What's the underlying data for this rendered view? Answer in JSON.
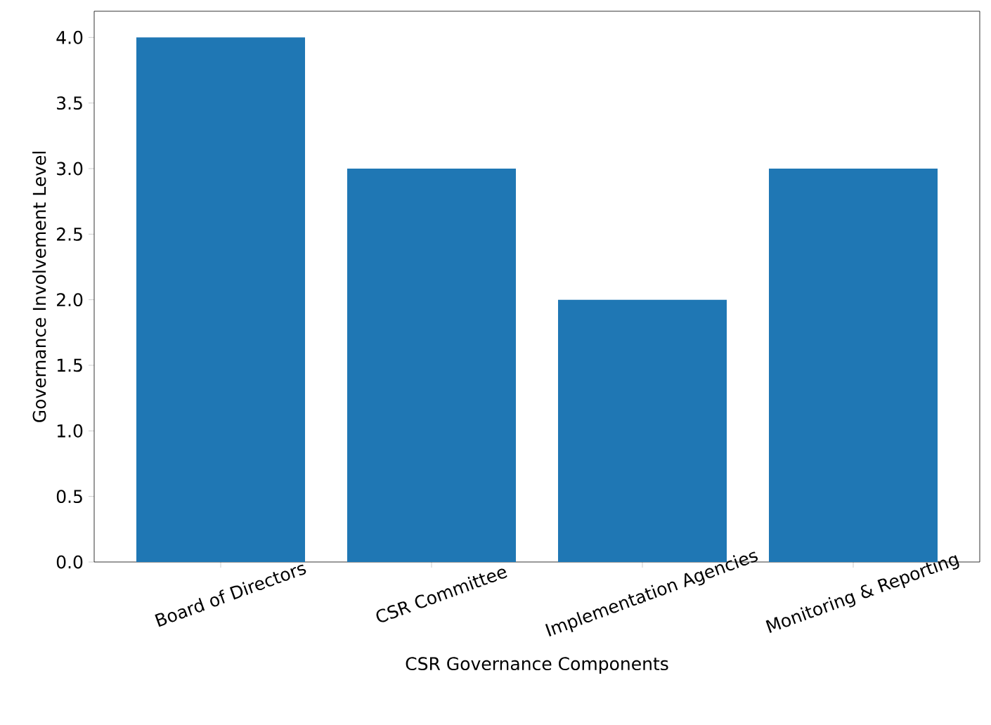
{
  "chart_data": {
    "type": "bar",
    "xlabel": "CSR Governance Components",
    "ylabel": "Governance Involvement Level",
    "categories": [
      "Board of Directors",
      "CSR Committee",
      "Implementation Agencies",
      "Monitoring & Reporting"
    ],
    "values": [
      4,
      3,
      2,
      3
    ],
    "color": "#1f77b4",
    "ylim": [
      0,
      4.2
    ],
    "yticks": [
      {
        "value": 0,
        "label": "0.0"
      },
      {
        "value": 0.5,
        "label": "0.5"
      },
      {
        "value": 1,
        "label": "1.0"
      },
      {
        "value": 1.5,
        "label": "1.5"
      },
      {
        "value": 2,
        "label": "2.0"
      },
      {
        "value": 2.5,
        "label": "2.5"
      },
      {
        "value": 3,
        "label": "3.0"
      },
      {
        "value": 3.5,
        "label": "3.5"
      },
      {
        "value": 4,
        "label": "4.0"
      }
    ]
  }
}
